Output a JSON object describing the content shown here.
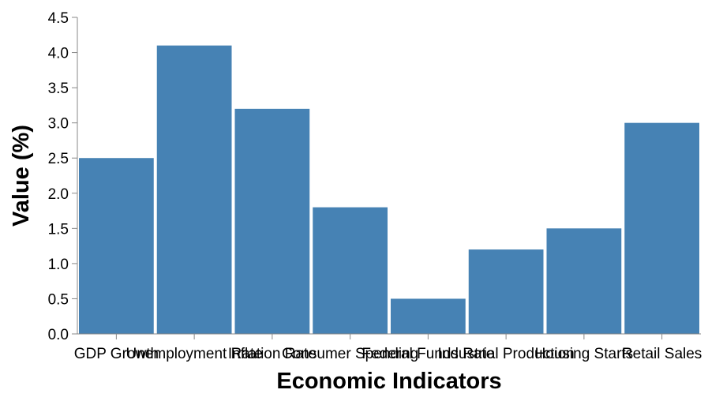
{
  "chart_data": {
    "type": "bar",
    "categories": [
      "GDP Growth",
      "Unemployment Rate",
      "Inflation Rate",
      "Consumer Spending",
      "Federal Funds Rate",
      "Industrial Production",
      "Housing Starts",
      "Retail Sales"
    ],
    "values": [
      2.5,
      4.1,
      3.2,
      1.8,
      0.5,
      1.2,
      1.5,
      3.0
    ],
    "xlabel": "Economic Indicators",
    "ylabel": "Value (%)",
    "ylim": [
      0,
      4.5
    ],
    "yticks": [
      "0.0",
      "0.5",
      "1.0",
      "1.5",
      "2.0",
      "2.5",
      "3.0",
      "3.5",
      "4.0",
      "4.5"
    ],
    "bar_color": "#4682b4",
    "grid": false
  }
}
